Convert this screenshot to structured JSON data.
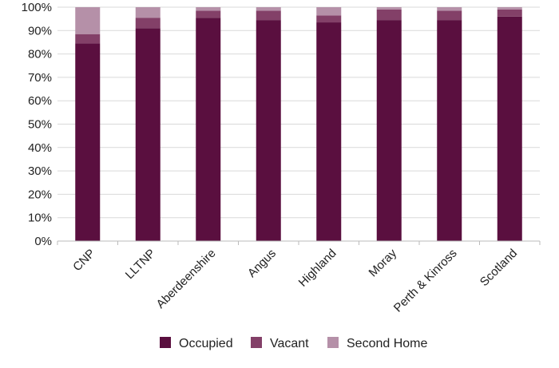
{
  "chart_data": {
    "type": "bar",
    "stacked": true,
    "percent": true,
    "categories": [
      "CNP",
      "LLTNP",
      "Aberdeenshire",
      "Angus",
      "Highland",
      "Moray",
      "Perth & Kinross",
      "Scotland"
    ],
    "series": [
      {
        "name": "Occupied",
        "color": "#5a0f3f",
        "values": [
          84.5,
          91,
          95.5,
          94.5,
          93.5,
          94.5,
          94.5,
          96
        ]
      },
      {
        "name": "Vacant",
        "color": "#834068",
        "values": [
          4,
          4.5,
          3,
          4,
          3,
          4.5,
          4,
          3
        ]
      },
      {
        "name": "Second Home",
        "color": "#b590a8",
        "values": [
          11.5,
          4.5,
          1.5,
          1.5,
          3.5,
          1,
          1.5,
          1
        ]
      }
    ],
    "yticks": [
      "0%",
      "10%",
      "20%",
      "30%",
      "40%",
      "50%",
      "60%",
      "70%",
      "80%",
      "90%",
      "100%"
    ],
    "ylim": [
      0,
      100
    ],
    "grid": true,
    "legend": "bottom"
  }
}
